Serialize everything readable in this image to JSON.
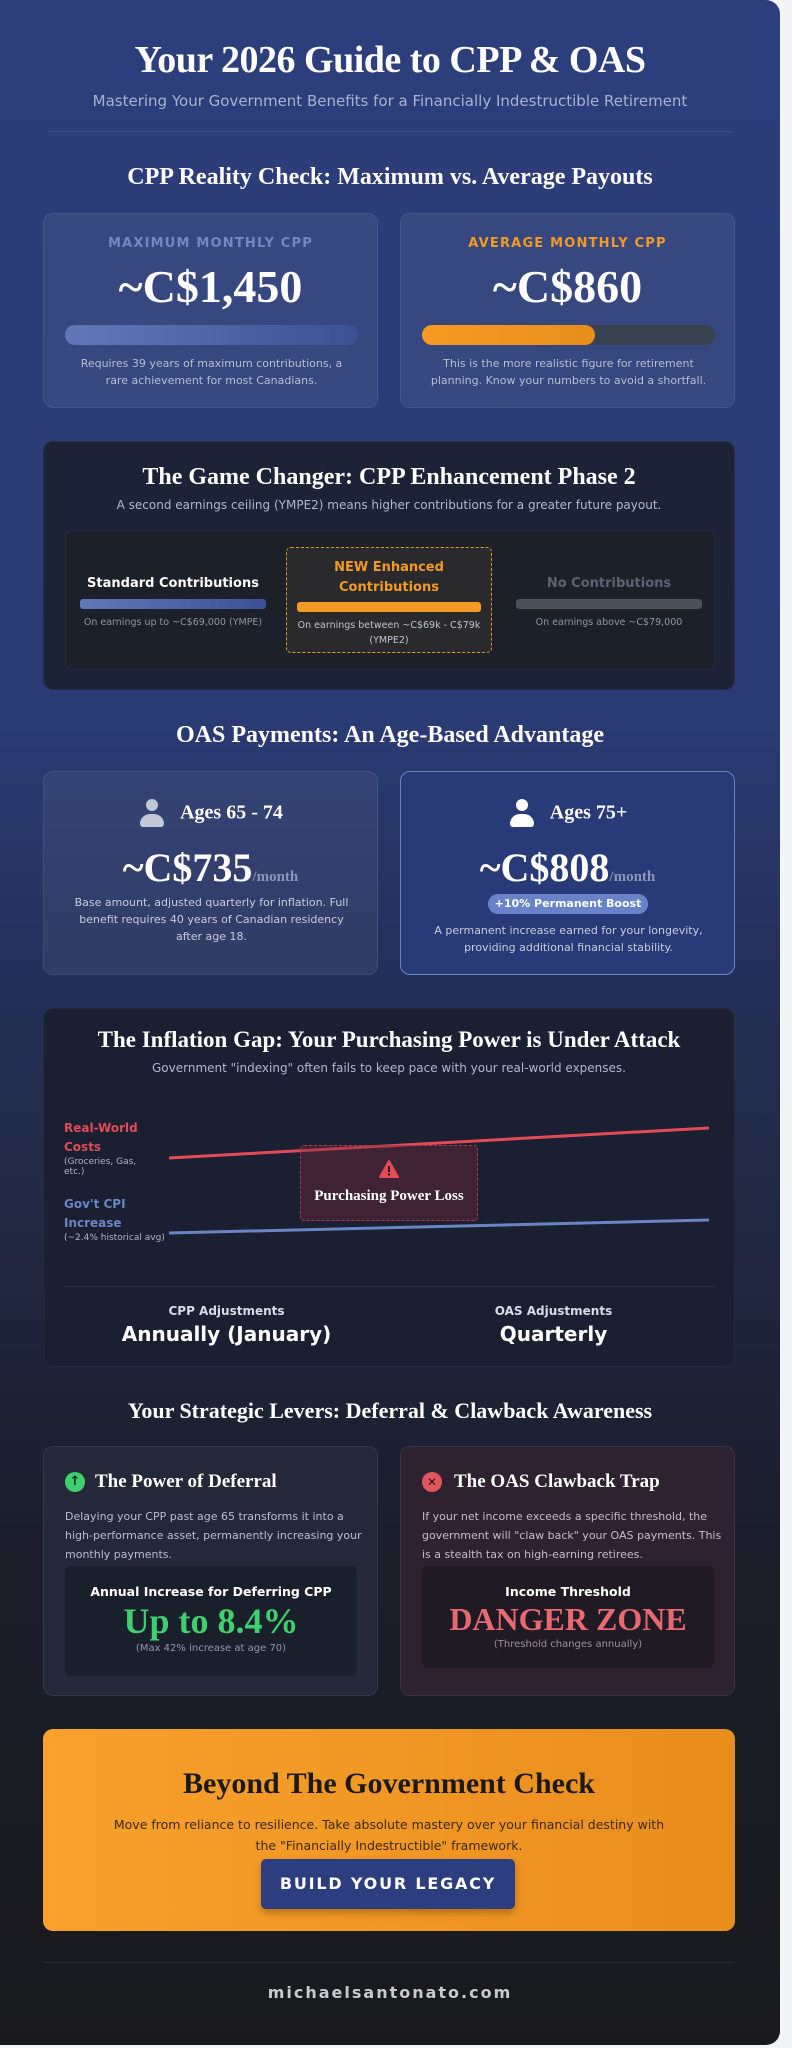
{
  "header": {
    "title": "Your 2026 Guide to CPP & OAS",
    "subtitle": "Mastering Your Government Benefits for a Financially Indestructible Retirement"
  },
  "cpp_reality": {
    "heading": "CPP Reality Check: Maximum vs. Average Payouts",
    "max": {
      "label": "MAXIMUM MONTHLY CPP",
      "value": "~C$1,450",
      "bar_fill_pct": 100,
      "note": "Requires 39 years of maximum contributions, a rare achievement for most Canadians."
    },
    "avg": {
      "label": "AVERAGE MONTHLY CPP",
      "value": "~C$860",
      "bar_fill_pct": 59,
      "note": "This is the more realistic figure for retirement planning. Know your numbers to avoid a shortfall."
    }
  },
  "enhancement": {
    "heading": "The Game Changer: CPP Enhancement Phase 2",
    "subtitle": "A second earnings ceiling (YMPE2) means higher contributions for a greater future payout.",
    "tiers": [
      {
        "title": "Standard Contributions",
        "desc": "On earnings up to ~C$69,000 (YMPE)"
      },
      {
        "title": "NEW Enhanced Contributions",
        "desc": "On earnings between ~C$69k - C$79k (YMPE2)"
      },
      {
        "title": "No Contributions",
        "desc": "On earnings above ~C$79,000"
      }
    ]
  },
  "oas": {
    "heading": "OAS Payments: An Age-Based Advantage",
    "cards": [
      {
        "age": "Ages 65 - 74",
        "amount": "~C$735",
        "per": "/month",
        "note": "Base amount, adjusted quarterly for inflation. Full benefit requires 40 years of Canadian residency after age 18."
      },
      {
        "age": "Ages 75+",
        "amount": "~C$808",
        "per": "/month",
        "badge": "+10% Permanent Boost",
        "note": "A permanent increase earned for your longevity, providing additional financial stability."
      }
    ]
  },
  "inflation": {
    "heading": "The Inflation Gap: Your Purchasing Power is Under Attack",
    "subtitle": "Government \"indexing\" often fails to keep pace with your real-world expenses.",
    "real": {
      "label": "Real-World Costs",
      "sub": "(Groceries, Gas, etc.)",
      "color": "#e04b55"
    },
    "cpi": {
      "label": "Gov't CPI Increase",
      "sub": "(~2.4% historical avg)",
      "color": "#6b84c4"
    },
    "gap_label": "Purchasing Power Loss",
    "adjustments": [
      {
        "label": "CPP Adjustments",
        "value": "Annually (January)"
      },
      {
        "label": "OAS Adjustments",
        "value": "Quarterly"
      }
    ]
  },
  "levers": {
    "heading": "Your Strategic Levers: Deferral & Clawback Awareness",
    "deferral": {
      "title": "The Power of Deferral",
      "text": "Delaying your CPP past age 65 transforms it into a high-performance asset, permanently increasing your monthly payments.",
      "box_label": "Annual Increase for Deferring CPP",
      "box_value": "Up to 8.4%",
      "box_note": "(Max 42% increase at age 70)"
    },
    "clawback": {
      "title": "The OAS Clawback Trap",
      "text": "If your net income exceeds a specific threshold, the government will \"claw back\" your OAS payments. This is a stealth tax on high-earning retirees.",
      "box_label": "Income Threshold",
      "box_value": "DANGER ZONE",
      "box_note": "(Threshold changes annually)"
    }
  },
  "cta": {
    "heading": "Beyond The Government Check",
    "text": "Move from reliance to resilience. Take absolute mastery over your financial destiny with the \"Financially Indestructible\" framework.",
    "button": "BUILD YOUR LEGACY"
  },
  "footer": {
    "site": "michaelsantonato.com"
  },
  "colors": {
    "accent_orange": "#f39a25",
    "accent_blue": "#5b74b8",
    "green": "#3ecf6e",
    "red": "#e0565f"
  }
}
